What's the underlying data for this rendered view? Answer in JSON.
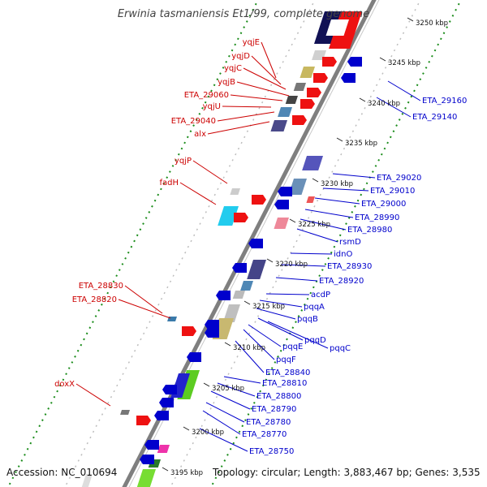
{
  "title": "Erwinia tasmaniensis Et1/99, complete genome",
  "footer": {
    "accession": "Accession: NC_010694",
    "topology": "Topology: circular; Length: 3,883,467 bp; Genes: 3,535"
  },
  "colors": {
    "forward_label": "#cc0000",
    "reverse_label": "#0000cc",
    "backbone": "#7f7f7f",
    "tick_green": "#1a8c1a"
  },
  "kbp_marks": [
    "3250 kbp",
    "3245 kbp",
    "3240 kbp",
    "3235 kbp",
    "3230 kbp",
    "3225 kbp",
    "3220 kbp",
    "3215 kbp",
    "3210 kbp",
    "3205 kbp",
    "3200 kbp",
    "3195 kbp"
  ],
  "forward_labels": [
    "yqjE",
    "yqjD",
    "yqjC",
    "yqjB",
    "ETA_29060",
    "yqjU",
    "ETA_29040",
    "alx",
    "yqjP",
    "fadH",
    "ETA_28830",
    "ETA_28820",
    "doxX"
  ],
  "reverse_labels": [
    "ETA_29160",
    "ETA_29140",
    "ETA_29020",
    "ETA_29010",
    "ETA_29000",
    "ETA_28990",
    "ETA_28980",
    "rsmD",
    "idnO",
    "ETA_28930",
    "ETA_28920",
    "acdP",
    "pqqA",
    "pqqB",
    "pqqD",
    "pqqC",
    "pqqE",
    "pqqF",
    "ETA_28840",
    "ETA_28810",
    "ETA_28800",
    "ETA_28790",
    "ETA_28780",
    "ETA_28770",
    "ETA_28750"
  ]
}
